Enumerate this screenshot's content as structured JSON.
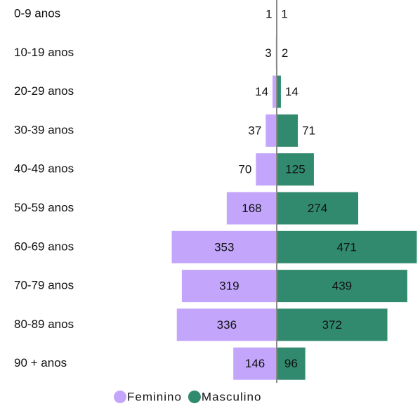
{
  "chart_data": {
    "type": "bar",
    "orientation": "horizontal-diverging",
    "categories": [
      "0-9 anos",
      "10-19 anos",
      "20-29 anos",
      "30-39 anos",
      "40-49 anos",
      "50-59 anos",
      "60-69 anos",
      "70-79 anos",
      "80-89 anos",
      "90 + anos"
    ],
    "series": [
      {
        "name": "Feminino",
        "color": "#c3a6fc",
        "values": [
          1,
          3,
          14,
          37,
          70,
          168,
          353,
          319,
          336,
          146
        ]
      },
      {
        "name": "Masculino",
        "color": "#318a6e",
        "values": [
          1,
          2,
          14,
          71,
          125,
          274,
          471,
          439,
          372,
          96
        ]
      }
    ],
    "legend": "bottom"
  }
}
